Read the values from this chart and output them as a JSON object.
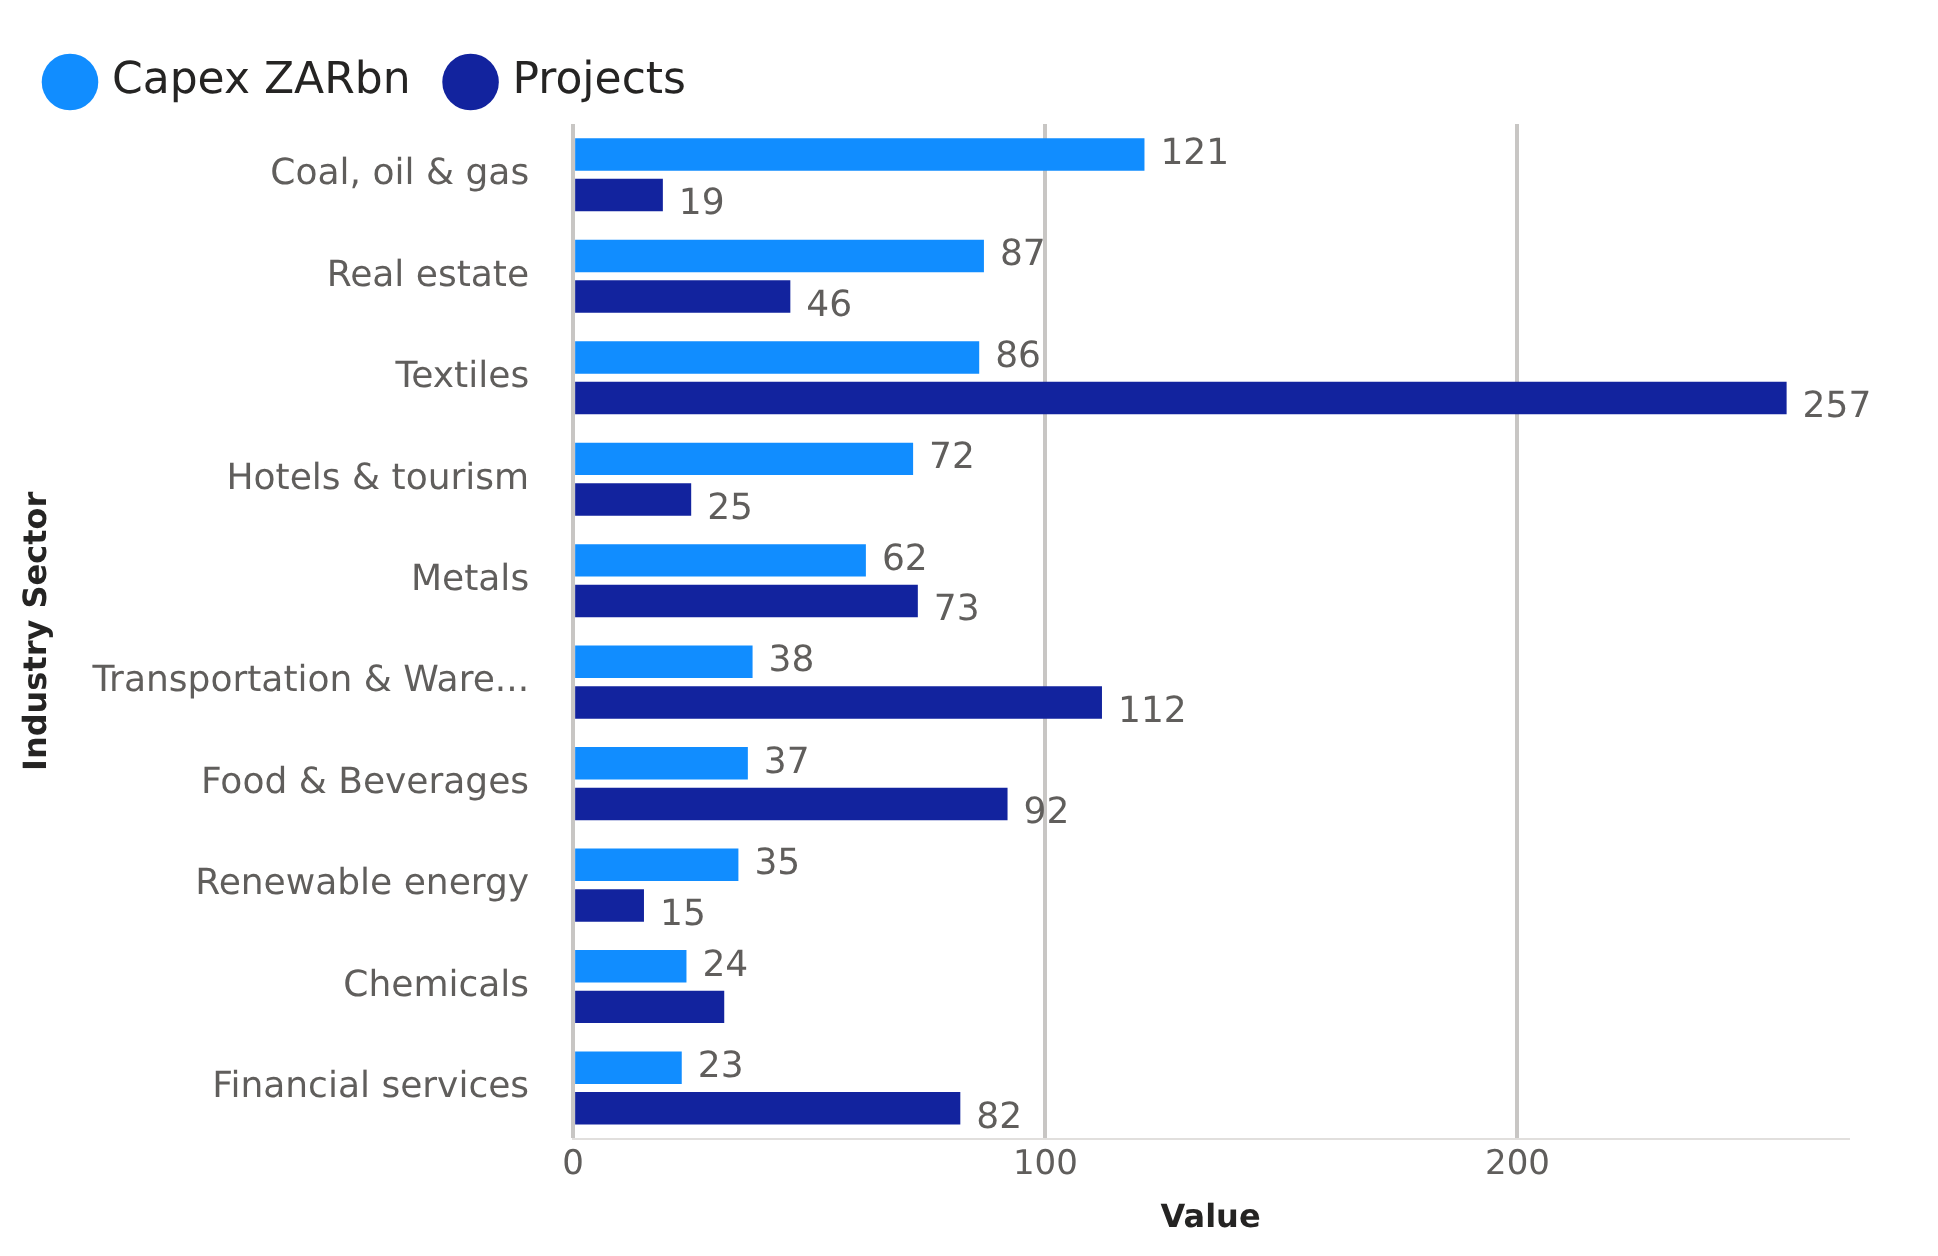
{
  "chart_data": {
    "type": "bar",
    "orientation": "horizontal",
    "xlabel": "Value",
    "ylabel": "Industry Sector",
    "categories": [
      "Coal, oil & gas",
      "Real estate",
      "Textiles",
      "Hotels & tourism",
      "Metals",
      "Transportation & Ware...",
      "Food & Beverages",
      "Renewable energy",
      "Chemicals",
      "Financial services"
    ],
    "series": [
      {
        "name": "Capex ZARbn",
        "color": "#118dff",
        "values": [
          121,
          87,
          86,
          72,
          62,
          38,
          37,
          35,
          24,
          23
        ]
      },
      {
        "name": "Projects",
        "color": "#12239e",
        "values": [
          19,
          46,
          257,
          25,
          73,
          112,
          92,
          15,
          32,
          82
        ],
        "value_labels": [
          "19",
          "46",
          "257",
          "25",
          "73",
          "112",
          "92",
          "15",
          null,
          "82"
        ]
      }
    ],
    "xlim": [
      0,
      270
    ],
    "xticks": [
      0,
      100,
      200
    ],
    "grid": "x",
    "legend": "top left",
    "data_labels": true
  }
}
